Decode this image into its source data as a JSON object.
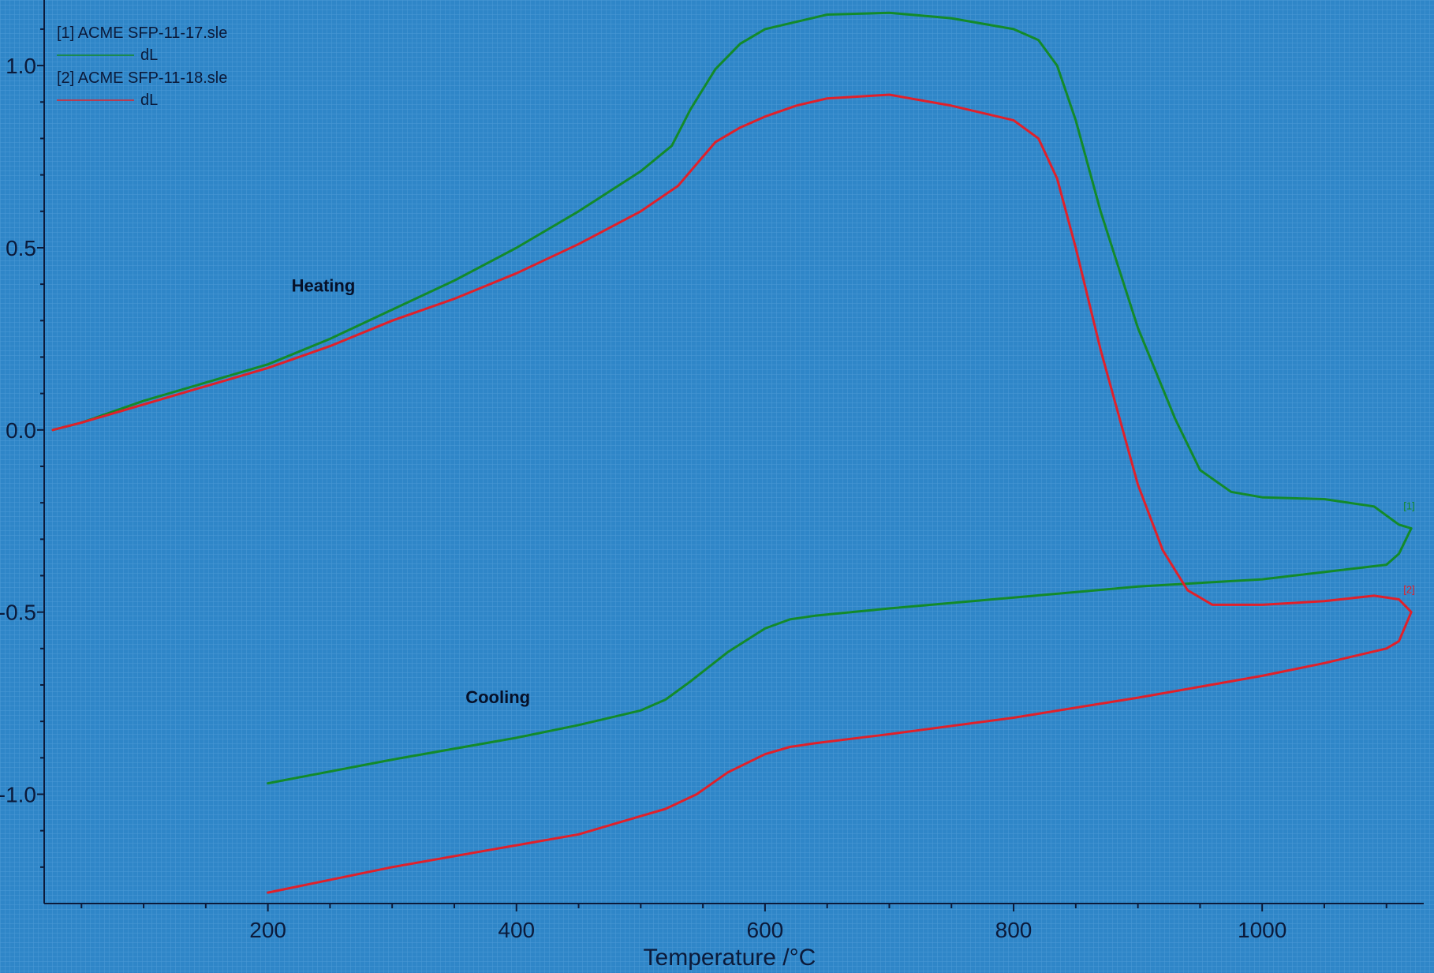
{
  "chart_data": {
    "type": "line",
    "xlabel": "Temperature /°C",
    "ylabel": "",
    "xlim": [
      20,
      1130
    ],
    "ylim": [
      -1.3,
      1.18
    ],
    "x_ticks": [
      200,
      400,
      600,
      800,
      1000
    ],
    "x_tick_labels": [
      "200",
      "400",
      "600",
      "800",
      "1000"
    ],
    "y_ticks": [
      1.0,
      0.5,
      0.0,
      -0.5,
      -1.0
    ],
    "y_tick_labels": [
      "1.0",
      "0.5",
      "0.0",
      "-0.5",
      "-1.0"
    ],
    "grid": true,
    "legend_position": "top-left",
    "annotations": [
      {
        "text": "Heating",
        "x": 200,
        "y": 0.38
      },
      {
        "text": "Cooling",
        "x": 340,
        "y": -0.75
      }
    ],
    "series": [
      {
        "name": "[1] ACME SFP-11-17.sle",
        "legend_sub": "dL",
        "end_tag": "[1]",
        "color": "#138a2a",
        "x": [
          27,
          50,
          100,
          150,
          200,
          250,
          300,
          350,
          400,
          450,
          500,
          525,
          540,
          560,
          580,
          600,
          625,
          650,
          700,
          750,
          800,
          820,
          835,
          850,
          870,
          900,
          930,
          950,
          975,
          1000,
          1050,
          1090,
          1110,
          1120,
          1110,
          1100,
          1050,
          1000,
          900,
          800,
          700,
          640,
          620,
          600,
          570,
          540,
          520,
          500,
          450,
          400,
          300,
          200
        ],
        "y": [
          0.0,
          0.02,
          0.08,
          0.13,
          0.18,
          0.25,
          0.33,
          0.41,
          0.5,
          0.6,
          0.71,
          0.78,
          0.88,
          0.99,
          1.06,
          1.1,
          1.12,
          1.14,
          1.145,
          1.13,
          1.1,
          1.07,
          1.0,
          0.85,
          0.6,
          0.28,
          0.03,
          -0.11,
          -0.17,
          -0.185,
          -0.19,
          -0.21,
          -0.26,
          -0.27,
          -0.34,
          -0.37,
          -0.39,
          -0.41,
          -0.43,
          -0.46,
          -0.49,
          -0.51,
          -0.52,
          -0.545,
          -0.61,
          -0.69,
          -0.74,
          -0.77,
          -0.81,
          -0.845,
          -0.905,
          -0.97
        ]
      },
      {
        "name": "[2] ACME SFP-11-18.sle",
        "legend_sub": "dL",
        "end_tag": "[2]",
        "color": "#e0202a",
        "x": [
          27,
          50,
          100,
          150,
          200,
          250,
          300,
          350,
          400,
          450,
          500,
          530,
          545,
          560,
          580,
          600,
          625,
          650,
          700,
          750,
          800,
          820,
          835,
          850,
          870,
          900,
          920,
          940,
          960,
          1000,
          1050,
          1090,
          1110,
          1120,
          1110,
          1100,
          1050,
          1000,
          900,
          800,
          700,
          640,
          620,
          600,
          570,
          545,
          520,
          500,
          450,
          400,
          300,
          200
        ],
        "y": [
          0.0,
          0.02,
          0.07,
          0.12,
          0.17,
          0.23,
          0.3,
          0.36,
          0.43,
          0.51,
          0.6,
          0.67,
          0.73,
          0.79,
          0.83,
          0.86,
          0.89,
          0.91,
          0.92,
          0.89,
          0.85,
          0.8,
          0.69,
          0.5,
          0.22,
          -0.15,
          -0.33,
          -0.44,
          -0.48,
          -0.48,
          -0.47,
          -0.455,
          -0.465,
          -0.5,
          -0.58,
          -0.6,
          -0.64,
          -0.675,
          -0.735,
          -0.79,
          -0.835,
          -0.86,
          -0.87,
          -0.89,
          -0.94,
          -1.0,
          -1.04,
          -1.06,
          -1.11,
          -1.14,
          -1.2,
          -1.27
        ]
      }
    ]
  }
}
